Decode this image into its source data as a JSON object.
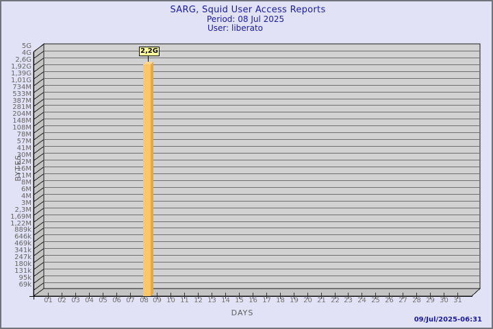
{
  "page": {
    "background_color": "#e2e2f6",
    "border_color": "#72727c"
  },
  "header": {
    "title": "SARG, Squid User Access Reports",
    "period_line": "Period: 08 Jul 2025",
    "user_line": "User: liberato",
    "text_color": "#1a1aa0"
  },
  "footer": {
    "timestamp": "09/Jul/2025-06:31"
  },
  "chart_data": {
    "type": "bar",
    "title": "SARG, Squid User Access Reports",
    "subtitle": [
      "Period: 08 Jul 2025",
      "User: liberato"
    ],
    "xlabel": "DAYS",
    "ylabel": "BYTES",
    "y_scale": "log",
    "grid": "horizontal",
    "style": "3d-bar",
    "x_tick_labels": [
      "01",
      "02",
      "03",
      "04",
      "05",
      "06",
      "07",
      "08",
      "09",
      "10",
      "11",
      "12",
      "13",
      "14",
      "15",
      "16",
      "17",
      "18",
      "19",
      "20",
      "21",
      "22",
      "23",
      "24",
      "25",
      "26",
      "27",
      "28",
      "29",
      "30",
      "31"
    ],
    "y_tick_labels": [
      "5G",
      "4G",
      "2,6G",
      "1,92G",
      "1,39G",
      "1,01G",
      "734M",
      "533M",
      "387M",
      "281M",
      "204M",
      "148M",
      "108M",
      "78M",
      "57M",
      "41M",
      "30M",
      "22M",
      "16M",
      "11M",
      "8M",
      "6M",
      "4M",
      "3M",
      "2,3M",
      "1,69M",
      "1,22M",
      "889k",
      "646k",
      "469k",
      "341k",
      "247k",
      "180k",
      "131k",
      "95k",
      "69k"
    ],
    "bars": [
      {
        "day": "08",
        "value_label": "2,2G",
        "value_gb": 2.2
      }
    ],
    "colors": {
      "bar_front": "#fcc66a",
      "bar_side": "#e9a83c",
      "bar_top": "#fdd58e",
      "value_box_bg": "#ffff9e",
      "plot_back_wall": "#d2d2d2",
      "plot_side_wall": "#c4c4c4",
      "gridline": "#6e6e6e",
      "frame_line": "#1a1a1a",
      "axis_text": "#6e6e6e"
    }
  }
}
